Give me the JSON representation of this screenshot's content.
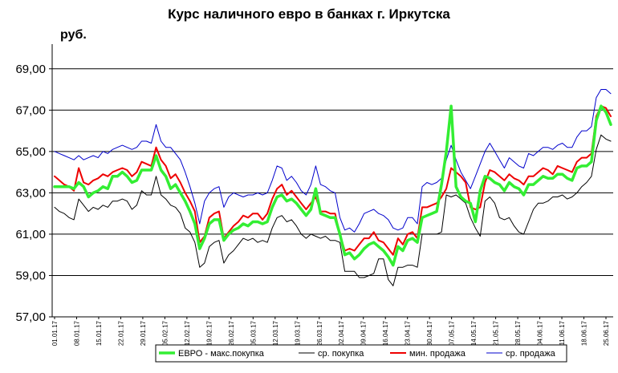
{
  "chart_data": {
    "type": "line",
    "title": "Курс наличного евро в банках г. Иркутска",
    "ylabel": "руб.",
    "xlabel": "",
    "ylim": [
      57,
      70
    ],
    "yticks": [
      "57,00",
      "59,00",
      "61,00",
      "63,00",
      "65,00",
      "67,00",
      "69,00"
    ],
    "ytick_values": [
      57,
      59,
      61,
      63,
      65,
      67,
      69
    ],
    "grid": "horizontal",
    "legend_position": "bottom",
    "x_labels": [
      "01.01.17",
      "08.01.17",
      "15.01.17",
      "22.01.17",
      "29.01.17",
      "05.02.17",
      "12.02.17",
      "19.02.17",
      "26.02.17",
      "05.03.17",
      "12.03.17",
      "19.03.17",
      "26.03.17",
      "02.04.17",
      "09.04.17",
      "16.04.17",
      "23.04.17",
      "30.04.17",
      "07.05.17",
      "14.05.17",
      "21.05.17",
      "28.05.17",
      "04.06.17",
      "11.06.17",
      "18.06.17",
      "25.06.17"
    ],
    "series": [
      {
        "name": "ЕВРО - макс.покупка",
        "color": "#33ee33",
        "width": 3.5,
        "values": [
          63.3,
          63.3,
          63.3,
          63.3,
          63.2,
          63.5,
          63.3,
          62.8,
          63.0,
          63.1,
          63.3,
          63.2,
          63.8,
          63.8,
          64.0,
          63.8,
          63.5,
          63.6,
          64.1,
          64.1,
          64.1,
          64.8,
          64.1,
          63.8,
          63.2,
          63.4,
          63.0,
          62.6,
          62.1,
          61.5,
          60.3,
          60.8,
          61.5,
          61.7,
          61.7,
          60.7,
          61.0,
          61.2,
          61.3,
          61.5,
          61.4,
          61.6,
          61.6,
          61.5,
          61.6,
          62.3,
          62.8,
          62.9,
          62.6,
          62.7,
          62.5,
          62.2,
          61.9,
          62.2,
          63.2,
          62.0,
          61.9,
          61.8,
          61.8,
          61.0,
          60.0,
          60.1,
          59.8,
          60.0,
          60.3,
          60.5,
          60.6,
          60.4,
          60.2,
          59.9,
          59.5,
          60.4,
          60.2,
          60.7,
          60.8,
          60.6,
          61.8,
          61.9,
          62.0,
          62.1,
          63.4,
          65.0,
          67.2,
          63.3,
          62.8,
          62.6,
          62.5,
          61.6,
          63.1,
          63.8,
          63.7,
          63.5,
          63.4,
          63.1,
          63.5,
          63.3,
          63.2,
          62.9,
          63.4,
          63.4,
          63.6,
          63.8,
          63.7,
          63.7,
          63.9,
          63.9,
          63.7,
          63.6,
          64.2,
          64.3,
          64.3,
          64.5,
          66.5,
          67.2,
          66.9,
          66.3
        ]
      },
      {
        "name": "ср. покупка",
        "color": "#000000",
        "width": 1,
        "values": [
          62.3,
          62.1,
          62.0,
          61.8,
          61.7,
          62.7,
          62.4,
          62.1,
          62.3,
          62.2,
          62.4,
          62.3,
          62.6,
          62.6,
          62.7,
          62.6,
          62.2,
          62.4,
          63.1,
          62.9,
          62.9,
          63.8,
          62.9,
          62.7,
          62.4,
          62.3,
          62.0,
          61.3,
          61.1,
          60.6,
          59.4,
          59.6,
          60.4,
          60.6,
          60.7,
          59.6,
          60.0,
          60.2,
          60.5,
          60.8,
          60.7,
          60.8,
          60.6,
          60.7,
          60.6,
          61.3,
          61.8,
          61.9,
          61.6,
          61.7,
          61.4,
          61.0,
          60.8,
          61.0,
          60.9,
          60.8,
          60.9,
          60.7,
          60.7,
          60.6,
          59.2,
          59.2,
          59.2,
          58.9,
          58.9,
          59.0,
          59.1,
          59.8,
          59.8,
          58.8,
          58.5,
          59.4,
          59.4,
          59.5,
          59.5,
          59.4,
          61.0,
          61.0,
          61.0,
          61.0,
          61.1,
          62.9,
          62.8,
          62.9,
          62.7,
          62.5,
          61.8,
          61.3,
          60.9,
          62.6,
          62.8,
          62.5,
          61.8,
          61.7,
          61.8,
          61.4,
          61.1,
          61.0,
          61.6,
          62.2,
          62.5,
          62.5,
          62.6,
          62.8,
          62.8,
          62.9,
          62.7,
          62.8,
          63.0,
          63.3,
          63.5,
          63.8,
          65.1,
          65.8,
          65.6,
          65.5
        ]
      },
      {
        "name": "мин. продажа",
        "color": "#ee0000",
        "width": 2,
        "values": [
          63.8,
          63.6,
          63.4,
          63.3,
          63.1,
          64.2,
          63.5,
          63.4,
          63.6,
          63.7,
          63.9,
          63.8,
          64.0,
          64.1,
          64.2,
          64.1,
          63.8,
          64.0,
          64.5,
          64.4,
          64.3,
          65.2,
          64.6,
          64.3,
          63.7,
          63.9,
          63.5,
          63.0,
          62.6,
          62.1,
          60.6,
          60.9,
          61.8,
          62.0,
          62.1,
          60.8,
          61.1,
          61.4,
          61.6,
          61.9,
          61.8,
          62.0,
          62.0,
          61.7,
          62.0,
          62.7,
          63.2,
          63.4,
          62.9,
          63.1,
          62.8,
          62.5,
          62.2,
          62.5,
          62.8,
          62.1,
          62.1,
          62.0,
          62.0,
          61.0,
          60.2,
          60.3,
          60.2,
          60.5,
          60.8,
          60.8,
          61.1,
          60.7,
          60.6,
          60.3,
          60.0,
          60.8,
          60.5,
          61.0,
          61.1,
          60.8,
          62.3,
          62.3,
          62.4,
          62.5,
          62.8,
          63.2,
          64.2,
          64.0,
          63.8,
          63.5,
          62.3,
          62.2,
          62.3,
          63.5,
          64.1,
          64.0,
          63.8,
          63.6,
          63.9,
          63.7,
          63.6,
          63.4,
          63.8,
          63.8,
          64.0,
          64.2,
          64.1,
          63.9,
          64.3,
          64.2,
          64.1,
          64.0,
          64.5,
          64.7,
          64.7,
          64.9,
          66.7,
          67.2,
          67.1,
          66.7
        ]
      },
      {
        "name": "ср. продажа",
        "color": "#0000cc",
        "width": 1,
        "values": [
          65.0,
          64.9,
          64.8,
          64.7,
          64.6,
          64.8,
          64.6,
          64.7,
          64.8,
          64.7,
          65.0,
          64.9,
          65.1,
          65.2,
          65.3,
          65.2,
          65.1,
          65.2,
          65.5,
          65.5,
          65.4,
          66.3,
          65.5,
          65.2,
          65.2,
          64.9,
          64.6,
          64.0,
          63.3,
          62.5,
          61.5,
          62.6,
          63.0,
          63.2,
          63.3,
          62.3,
          62.8,
          63.0,
          62.9,
          62.8,
          62.9,
          62.9,
          63.0,
          62.9,
          63.0,
          63.6,
          64.3,
          64.2,
          63.6,
          63.8,
          63.5,
          63.1,
          62.9,
          63.4,
          64.3,
          63.4,
          63.3,
          63.1,
          63.0,
          61.8,
          61.2,
          61.3,
          61.1,
          61.5,
          62.0,
          62.1,
          62.2,
          62.0,
          61.9,
          61.7,
          61.3,
          61.2,
          61.3,
          61.8,
          61.8,
          61.5,
          63.3,
          63.5,
          63.4,
          63.5,
          63.7,
          64.6,
          65.3,
          64.6,
          64.0,
          63.6,
          63.2,
          63.8,
          64.4,
          65.0,
          65.4,
          65.0,
          64.6,
          64.2,
          64.7,
          64.5,
          64.3,
          64.2,
          64.9,
          64.8,
          65.0,
          65.2,
          65.2,
          65.1,
          65.3,
          65.4,
          65.2,
          65.2,
          65.7,
          66.0,
          66.0,
          66.2,
          67.6,
          68.0,
          68.0,
          67.8
        ]
      }
    ]
  }
}
